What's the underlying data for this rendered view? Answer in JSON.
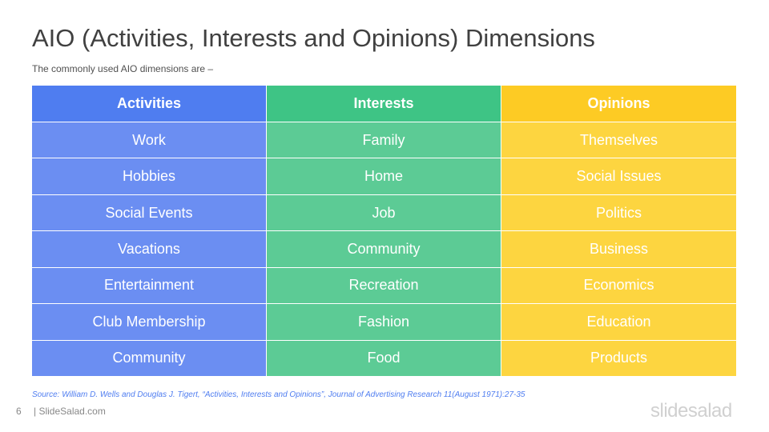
{
  "slide": {
    "title": "AIO (Activities, Interests and Opinions) Dimensions",
    "subtitle": "The commonly  used AIO dimensions  are –",
    "source": "Source: William D. Wells and Douglas J. Tigert, “Activities, Interests and Opinions”, Journal of Advertising Research 11(August 1971):27-35",
    "page_number": "6",
    "site": "| SlideSalad.com",
    "logo": "slidesalad"
  },
  "colors": {
    "activities_header": "#4f7df0",
    "activities_body": "#6b8ef2",
    "interests_header": "#3ec485",
    "interests_body": "#5ccb95",
    "opinions_header": "#fdcb24",
    "opinions_body": "#fdd540"
  },
  "table": {
    "headers": [
      "Activities",
      "Interests",
      "Opinions"
    ],
    "rows": [
      [
        "Work",
        "Family",
        "Themselves"
      ],
      [
        "Hobbies",
        "Home",
        "Social Issues"
      ],
      [
        "Social Events",
        "Job",
        "Politics"
      ],
      [
        "Vacations",
        "Community",
        "Business"
      ],
      [
        "Entertainment",
        "Recreation",
        "Economics"
      ],
      [
        "Club Membership",
        "Fashion",
        "Education"
      ],
      [
        "Community",
        "Food",
        "Products"
      ]
    ]
  }
}
